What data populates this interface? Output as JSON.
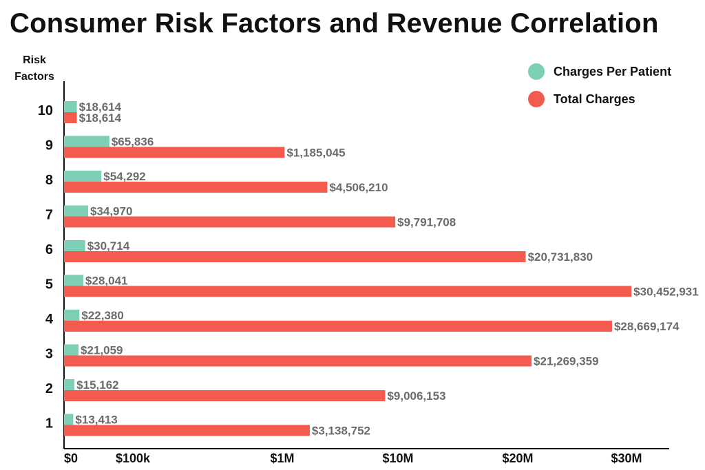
{
  "chart_data": {
    "type": "bar",
    "orientation": "horizontal",
    "title": "Consumer Risk Factors and Revenue Correlation",
    "ylabel": "Risk Factors",
    "xlabel": "",
    "categories": [
      "10",
      "9",
      "8",
      "7",
      "6",
      "5",
      "4",
      "3",
      "2",
      "1"
    ],
    "series": [
      {
        "name": "Charges Per Patient",
        "color": "#7dcfb6",
        "values": [
          18614,
          65836,
          54292,
          34970,
          30714,
          28041,
          22380,
          21059,
          15162,
          13413
        ],
        "labels": [
          "$18,614",
          "$65,836",
          "$54,292",
          "$34,970",
          "$30,714",
          "$28,041",
          "$22,380",
          "$21,059",
          "$15,162",
          "$13,413"
        ]
      },
      {
        "name": "Total Charges",
        "color": "#f45b4f",
        "values": [
          18614,
          1185045,
          4506210,
          9791708,
          20731830,
          30452931,
          28669174,
          21269359,
          9006153,
          3138752
        ],
        "labels": [
          "$18,614",
          "$1,185,045",
          "$4,506,210",
          "$9,791,708",
          "$20,731,830",
          "$30,452,931",
          "$28,669,174",
          "$21,269,359",
          "$9,006,153",
          "$3,138,752"
        ]
      }
    ],
    "x_ticks": [
      {
        "value": 0,
        "label": "$0"
      },
      {
        "value": 100000,
        "label": "$100k"
      },
      {
        "value": 1000000,
        "label": "$1M"
      },
      {
        "value": 10000000,
        "label": "$10M"
      },
      {
        "value": 20000000,
        "label": "$20M"
      },
      {
        "value": 30000000,
        "label": "$30M"
      }
    ],
    "x_scale": "piecewise (nonlinear)",
    "legend_position": "top-right",
    "grid": false
  }
}
